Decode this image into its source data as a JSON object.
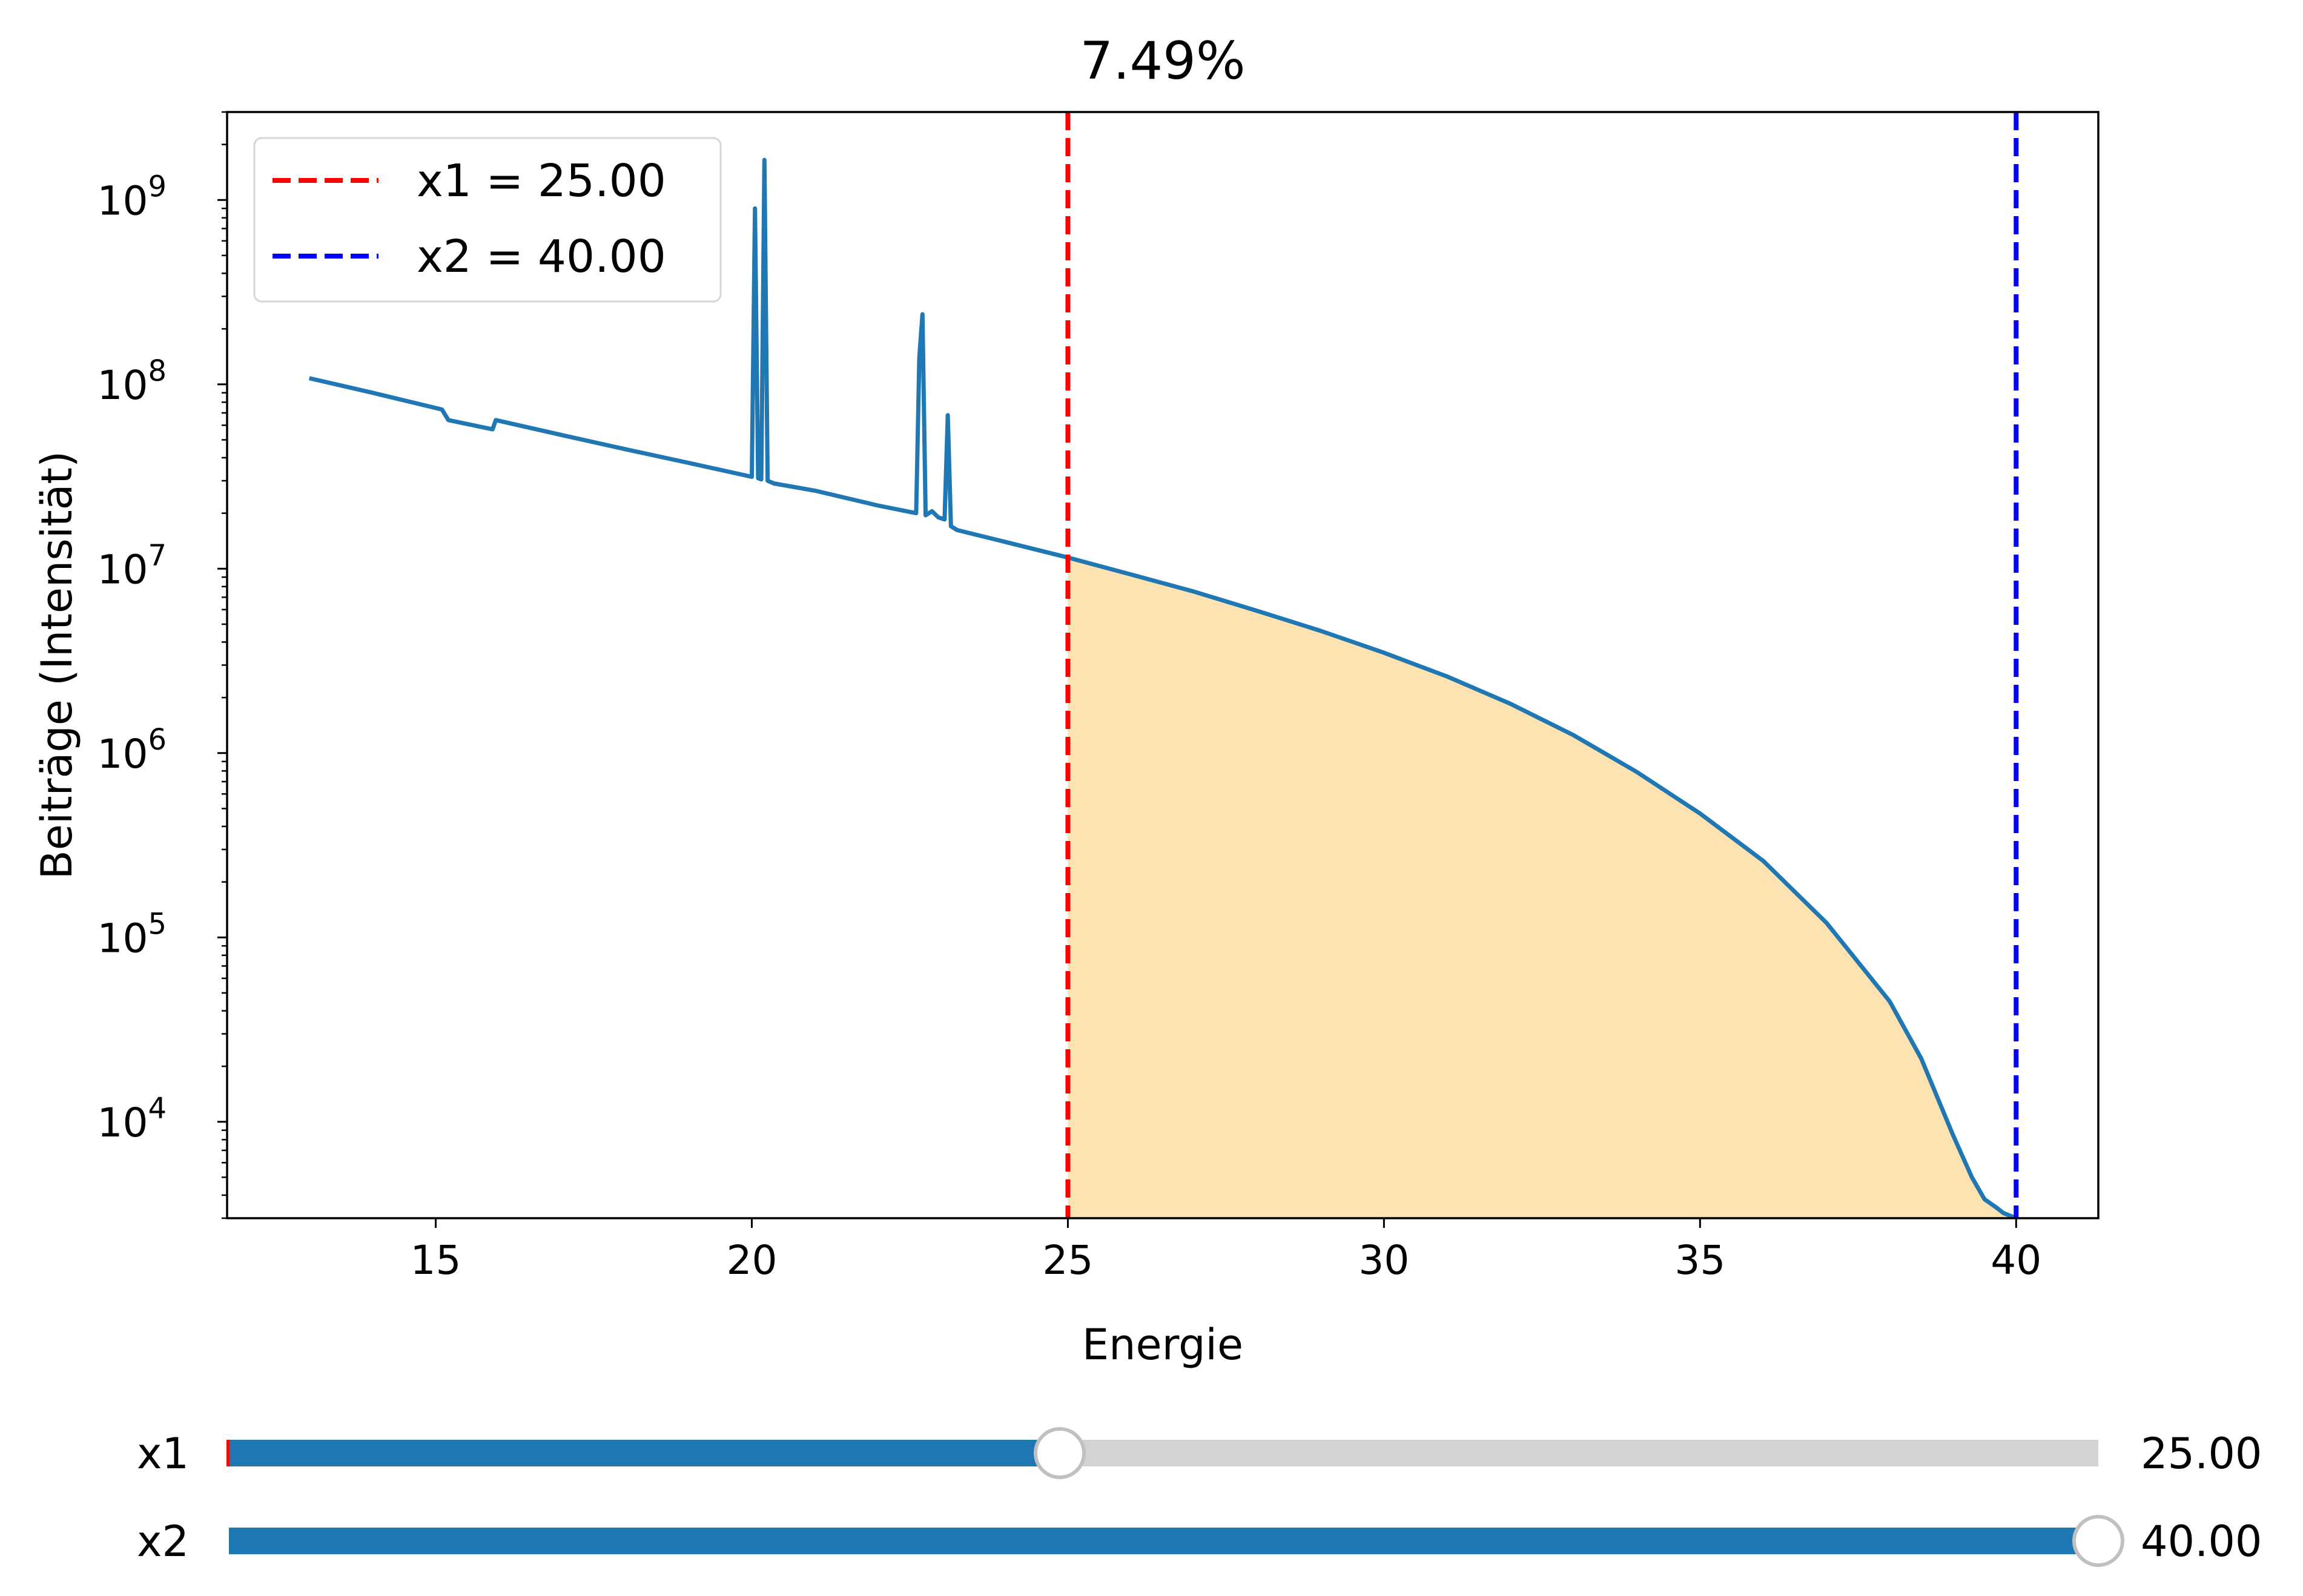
{
  "colors": {
    "line": "#1f77b4",
    "fill": "#fde3b2",
    "x1_line": "#ff0000",
    "x2_line": "#0000ff",
    "slider_track": "#d3d3d3",
    "slider_fill": "#1f77b4",
    "slider_handle": "#ffffff",
    "slider_handle_edge": "#c0c0c0"
  },
  "chart_data": {
    "type": "line",
    "title": "7.49%",
    "xlabel": "Energie",
    "ylabel": "Beiträge (Intensität)",
    "yscale": "log",
    "xlim": [
      11.7,
      41.3
    ],
    "ylim": [
      3000,
      3000000000
    ],
    "xticks": [
      15,
      20,
      25,
      30,
      35,
      40
    ],
    "yticks": [
      {
        "value": 10000,
        "base": "10",
        "exp": "4"
      },
      {
        "value": 100000,
        "base": "10",
        "exp": "5"
      },
      {
        "value": 1000000,
        "base": "10",
        "exp": "6"
      },
      {
        "value": 10000000,
        "base": "10",
        "exp": "7"
      },
      {
        "value": 100000000,
        "base": "10",
        "exp": "8"
      },
      {
        "value": 1000000000,
        "base": "10",
        "exp": "9"
      }
    ],
    "grid": false,
    "legend_position": "top-left",
    "series": [
      {
        "x": [
          13.0,
          14.0,
          15.1,
          15.2,
          15.9,
          15.95,
          17.0,
          18.0,
          19.0,
          20.0,
          20.05,
          20.1,
          20.15,
          20.2,
          20.25,
          20.3,
          20.35,
          21.0,
          22.0,
          22.6,
          22.65,
          22.7,
          22.75,
          22.85,
          22.95,
          23.05,
          23.1,
          23.15,
          23.25,
          24.0,
          25.0,
          26.0,
          27.0,
          28.0,
          29.0,
          30.0,
          31.0,
          32.0,
          33.0,
          34.0,
          35.0,
          36.0,
          37.0,
          38.0,
          38.5,
          39.0,
          39.3,
          39.5,
          39.7,
          39.8,
          39.9,
          39.95
        ],
        "y": [
          108000000,
          90000000,
          73000000,
          64000000,
          57000000,
          64000000,
          53000000,
          44500000,
          37500000,
          31500000,
          900000000,
          31000000,
          30500000,
          1650000000,
          30000000,
          29500000,
          29000000,
          26500000,
          22000000,
          20000000,
          140000000,
          240000000,
          19500000,
          20500000,
          19000000,
          18500000,
          68000000,
          17000000,
          16200000,
          14000000,
          11500000,
          9300000,
          7500000,
          5900000,
          4600000,
          3500000,
          2600000,
          1850000,
          1250000,
          790000,
          470000,
          260000,
          120000,
          45000,
          22000,
          8500,
          5000,
          3800,
          3400,
          3200,
          3100,
          3050
        ]
      }
    ],
    "shaded_region": {
      "from": 25.0,
      "to": 40.0
    },
    "markers": [
      {
        "name": "x1",
        "x": 25.0,
        "label": "x1 = 25.00"
      },
      {
        "name": "x2",
        "x": 40.0,
        "label": "x2 = 40.00"
      }
    ]
  },
  "sliders": [
    {
      "name": "x1",
      "label": "x1",
      "value": 25.0,
      "min": 13.0,
      "max": 40.0,
      "value_text": "25.00"
    },
    {
      "name": "x2",
      "label": "x2",
      "value": 40.0,
      "min": 13.0,
      "max": 40.0,
      "value_text": "40.00"
    }
  ]
}
